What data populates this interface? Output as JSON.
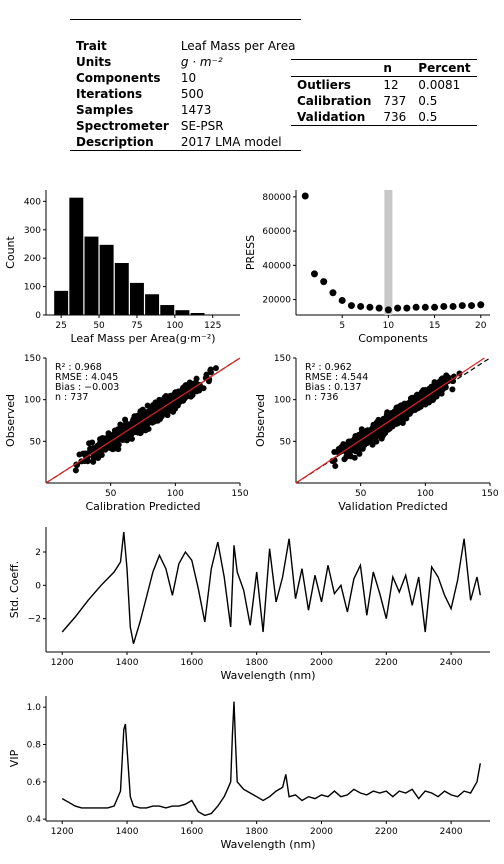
{
  "meta_table": {
    "rows": [
      {
        "key": "Trait",
        "value": "Leaf Mass per Area"
      },
      {
        "key": "Units",
        "value": "g · m⁻²"
      },
      {
        "key": "Components",
        "value": "10"
      },
      {
        "key": "Iterations",
        "value": "500"
      },
      {
        "key": "Samples",
        "value": "1473"
      },
      {
        "key": "Spectrometer",
        "value": "SE-PSR"
      },
      {
        "key": "Description",
        "value": "2017 LMA model"
      }
    ]
  },
  "stats_table": {
    "headers": [
      "",
      "n",
      "Percent"
    ],
    "rows": [
      {
        "key": "Outliers",
        "n": "12",
        "percent": "0.0081"
      },
      {
        "key": "Calibration",
        "n": "737",
        "percent": "0.5"
      },
      {
        "key": "Validation",
        "n": "736",
        "percent": "0.5"
      }
    ]
  },
  "chart_data": [
    {
      "type": "bar",
      "id": "hist",
      "xlabel": "Leaf Mass per Area(g·m⁻²)",
      "ylabel": "Count",
      "bin_edges": [
        20,
        30,
        40,
        50,
        60,
        70,
        80,
        90,
        100,
        110,
        120,
        130,
        140
      ],
      "values": [
        85,
        413,
        276,
        247,
        183,
        113,
        73,
        35,
        17,
        7,
        1,
        0
      ],
      "xlim": [
        15,
        143
      ],
      "ylim": [
        0,
        440
      ],
      "xticks": [
        25,
        50,
        75,
        100,
        125
      ],
      "yticks": [
        0,
        100,
        200,
        300,
        400
      ],
      "color": "#000000"
    },
    {
      "type": "scatter",
      "id": "press",
      "xlabel": "Components",
      "ylabel": "PRESS",
      "x": [
        1,
        2,
        3,
        4,
        5,
        6,
        7,
        8,
        9,
        10,
        11,
        12,
        13,
        14,
        15,
        16,
        17,
        18,
        19,
        20
      ],
      "y": [
        80500,
        35000,
        30500,
        24000,
        19500,
        16500,
        16000,
        15500,
        15000,
        14000,
        15000,
        15000,
        15500,
        15500,
        15500,
        16000,
        16000,
        16500,
        16500,
        17000
      ],
      "highlight_x": 10,
      "xlim": [
        0,
        21
      ],
      "ylim": [
        11000,
        84000
      ],
      "xticks": [
        5,
        10,
        15,
        20
      ],
      "yticks": [
        20000,
        40000,
        60000,
        80000
      ],
      "highlight_color": "#c8c8c8"
    },
    {
      "type": "scatter",
      "id": "cal",
      "xlabel": "Calibration Predicted",
      "ylabel": "Observed",
      "annotations": [
        "R² : 0.968",
        "RMSE : 4.045",
        "Bias : −0.003",
        "n : 737"
      ],
      "n": 737,
      "x_range": [
        15,
        140
      ],
      "xlim": [
        0,
        150
      ],
      "ylim": [
        0,
        150
      ],
      "xticks": [
        50,
        100,
        150
      ],
      "yticks": [
        50,
        100,
        150
      ],
      "fit": {
        "slope": 1.0,
        "intercept": -0.003
      },
      "line_color": "#e02020"
    },
    {
      "type": "scatter",
      "id": "val",
      "xlabel": "Validation Predicted",
      "ylabel": "Observed",
      "annotations": [
        "R² : 0.962",
        "RMSE : 4.544",
        "Bias : 0.137",
        "n : 736"
      ],
      "n": 736,
      "x_range": [
        18,
        135
      ],
      "xlim": [
        0,
        150
      ],
      "ylim": [
        0,
        150
      ],
      "xticks": [
        50,
        100,
        150
      ],
      "yticks": [
        50,
        100,
        150
      ],
      "fit": {
        "slope": 1.04,
        "intercept": -1.5
      },
      "line_color": "#e02020"
    },
    {
      "type": "line",
      "id": "coef",
      "xlabel": "Wavelength (nm)",
      "ylabel": "Std. Coeff.",
      "x": [
        1200,
        1240,
        1280,
        1320,
        1360,
        1380,
        1390,
        1400,
        1410,
        1420,
        1440,
        1460,
        1480,
        1500,
        1520,
        1540,
        1560,
        1580,
        1600,
        1620,
        1640,
        1660,
        1680,
        1700,
        1720,
        1730,
        1740,
        1760,
        1780,
        1800,
        1820,
        1840,
        1860,
        1880,
        1900,
        1920,
        1940,
        1960,
        1980,
        2000,
        2020,
        2040,
        2060,
        2080,
        2100,
        2120,
        2140,
        2160,
        2180,
        2200,
        2220,
        2240,
        2260,
        2280,
        2300,
        2320,
        2340,
        2360,
        2380,
        2400,
        2420,
        2440,
        2460,
        2480,
        2490
      ],
      "y": [
        -2.8,
        -1.9,
        -0.9,
        0.0,
        0.8,
        1.4,
        3.2,
        1.0,
        -2.5,
        -3.5,
        -2.2,
        -0.7,
        0.8,
        1.8,
        1.0,
        -0.6,
        1.3,
        2.0,
        1.5,
        -0.2,
        -2.2,
        1.0,
        2.6,
        0.5,
        -2.5,
        2.4,
        0.8,
        -0.3,
        -2.4,
        0.8,
        -2.8,
        2.2,
        -1.0,
        0.5,
        2.8,
        -0.8,
        1.0,
        -1.5,
        0.6,
        -1.0,
        1.2,
        -0.5,
        0.0,
        -1.6,
        0.4,
        1.2,
        -1.8,
        0.8,
        -0.5,
        -2.0,
        0.5,
        -0.4,
        0.6,
        -1.2,
        0.5,
        -2.8,
        1.1,
        0.5,
        -0.6,
        -1.4,
        0.3,
        2.8,
        -0.9,
        0.5,
        -0.6
      ],
      "xlim": [
        1150,
        2520
      ],
      "ylim": [
        -4,
        3.5
      ],
      "xticks": [
        1200,
        1400,
        1600,
        1800,
        2000,
        2200,
        2400
      ],
      "yticks": [
        -2,
        0,
        2
      ]
    },
    {
      "type": "line",
      "id": "vip",
      "xlabel": "Wavelength (nm)",
      "ylabel": "VIP",
      "x": [
        1200,
        1220,
        1240,
        1260,
        1280,
        1300,
        1320,
        1340,
        1360,
        1380,
        1390,
        1395,
        1400,
        1410,
        1420,
        1440,
        1460,
        1480,
        1500,
        1520,
        1540,
        1560,
        1580,
        1600,
        1620,
        1640,
        1660,
        1680,
        1700,
        1710,
        1720,
        1725,
        1730,
        1735,
        1740,
        1760,
        1780,
        1800,
        1820,
        1840,
        1860,
        1880,
        1890,
        1900,
        1920,
        1940,
        1960,
        1980,
        2000,
        2020,
        2040,
        2060,
        2080,
        2100,
        2120,
        2140,
        2160,
        2180,
        2200,
        2220,
        2240,
        2260,
        2280,
        2300,
        2320,
        2340,
        2360,
        2380,
        2400,
        2420,
        2440,
        2460,
        2480,
        2490
      ],
      "y": [
        0.51,
        0.49,
        0.47,
        0.46,
        0.46,
        0.46,
        0.46,
        0.46,
        0.47,
        0.55,
        0.88,
        0.91,
        0.78,
        0.52,
        0.47,
        0.46,
        0.46,
        0.47,
        0.47,
        0.46,
        0.47,
        0.47,
        0.48,
        0.5,
        0.44,
        0.42,
        0.43,
        0.47,
        0.52,
        0.56,
        0.6,
        0.85,
        1.03,
        0.8,
        0.6,
        0.56,
        0.54,
        0.52,
        0.5,
        0.52,
        0.55,
        0.57,
        0.64,
        0.52,
        0.53,
        0.5,
        0.52,
        0.51,
        0.53,
        0.52,
        0.55,
        0.52,
        0.53,
        0.56,
        0.54,
        0.53,
        0.55,
        0.54,
        0.55,
        0.52,
        0.55,
        0.54,
        0.56,
        0.51,
        0.55,
        0.54,
        0.52,
        0.55,
        0.53,
        0.52,
        0.55,
        0.54,
        0.6,
        0.7
      ],
      "xlim": [
        1150,
        2520
      ],
      "ylim": [
        0.39,
        1.06
      ],
      "xticks": [
        1200,
        1400,
        1600,
        1800,
        2000,
        2200,
        2400
      ],
      "yticks": [
        0.4,
        0.6,
        0.8,
        1.0
      ]
    }
  ]
}
